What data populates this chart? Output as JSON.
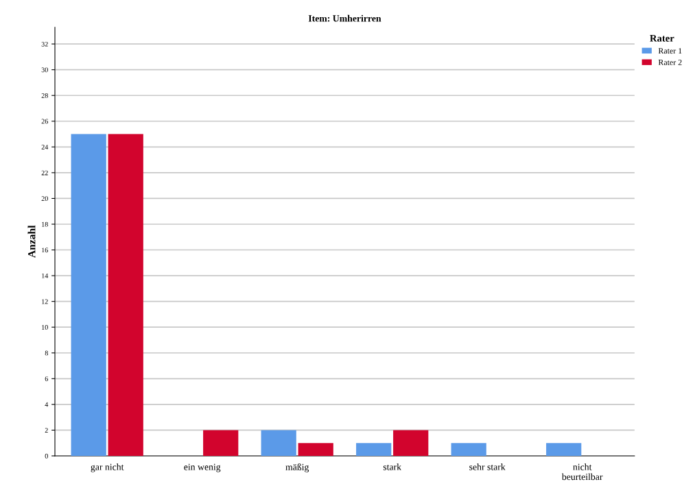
{
  "chart_data": {
    "type": "bar",
    "title": "Item: Umherirren",
    "ylabel": "Anzahl",
    "legend_title": "Rater",
    "categories": [
      "gar nicht",
      "ein wenig",
      "mäßig",
      "stark",
      "sehr stark",
      "nicht\nbeurteilbar"
    ],
    "series": [
      {
        "name": "Rater 1",
        "color": "#5b9ae8",
        "values": [
          25,
          0,
          2,
          1,
          1,
          1
        ]
      },
      {
        "name": "Rater 2",
        "color": "#d2042d",
        "values": [
          25,
          2,
          1,
          2,
          0,
          0
        ]
      }
    ],
    "ylim": [
      0,
      33.3
    ],
    "yticks": [
      0,
      2,
      4,
      6,
      8,
      10,
      12,
      14,
      16,
      18,
      20,
      22,
      24,
      26,
      28,
      30,
      32
    ],
    "grid": "y",
    "legend": "top right"
  }
}
